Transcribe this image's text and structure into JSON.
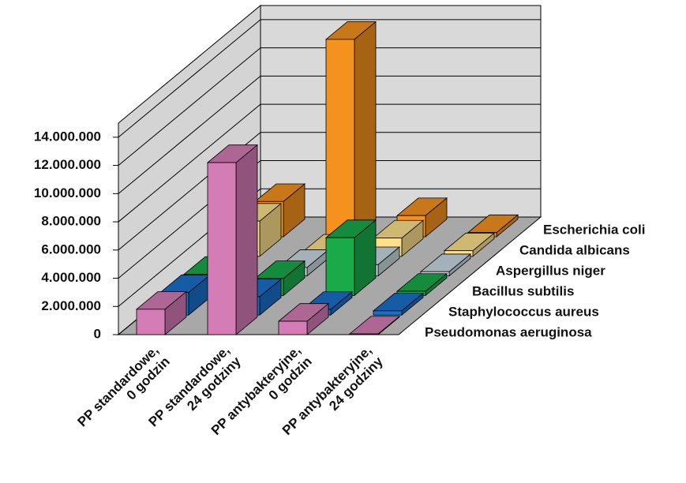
{
  "chart_data": {
    "type": "bar3d",
    "categories": [
      [
        "PP standardowe,",
        "0 godzin"
      ],
      [
        "PP standardowe,",
        "24 godziny"
      ],
      [
        "PP antybakteryjne,",
        "0 godzin"
      ],
      [
        "PP antybakteryjne,",
        "24 godziny"
      ]
    ],
    "series": [
      {
        "name": "Pseudomonas aeruginosa",
        "color": "#d47cb6",
        "values": [
          1800000,
          12200000,
          950000,
          50000
        ]
      },
      {
        "name": "Staphylococcus aureus",
        "color": "#1a6fc9",
        "values": [
          1600000,
          1300000,
          400000,
          300000
        ]
      },
      {
        "name": "Bacillus subtilis",
        "color": "#1aaa4a",
        "values": [
          1500000,
          1200000,
          4100000,
          300000
        ]
      },
      {
        "name": "Aspergillus niger",
        "color": "#c8d8e0",
        "values": [
          500000,
          600000,
          800000,
          300000
        ]
      },
      {
        "name": "Candida albicans",
        "color": "#fde08a",
        "values": [
          2500000,
          300000,
          1300000,
          400000
        ]
      },
      {
        "name": "Escherichia coli",
        "color": "#f5921e",
        "values": [
          2500000,
          14000000,
          1500000,
          300000
        ]
      }
    ],
    "ylim": [
      0,
      15000000
    ],
    "yticks": [
      0,
      {
        "value": 2000000,
        "label": "2.000.000"
      },
      {
        "value": 4000000,
        "label": "4.000.000"
      },
      {
        "value": 6000000,
        "label": "6.000.000"
      },
      {
        "value": 8000000,
        "label": "8.000.000"
      },
      {
        "value": 10000000,
        "label": "10.000.000"
      },
      {
        "value": 12000000,
        "label": "12.000.000"
      },
      {
        "value": 14000000,
        "label": "14.000.000"
      }
    ],
    "grid": true
  }
}
